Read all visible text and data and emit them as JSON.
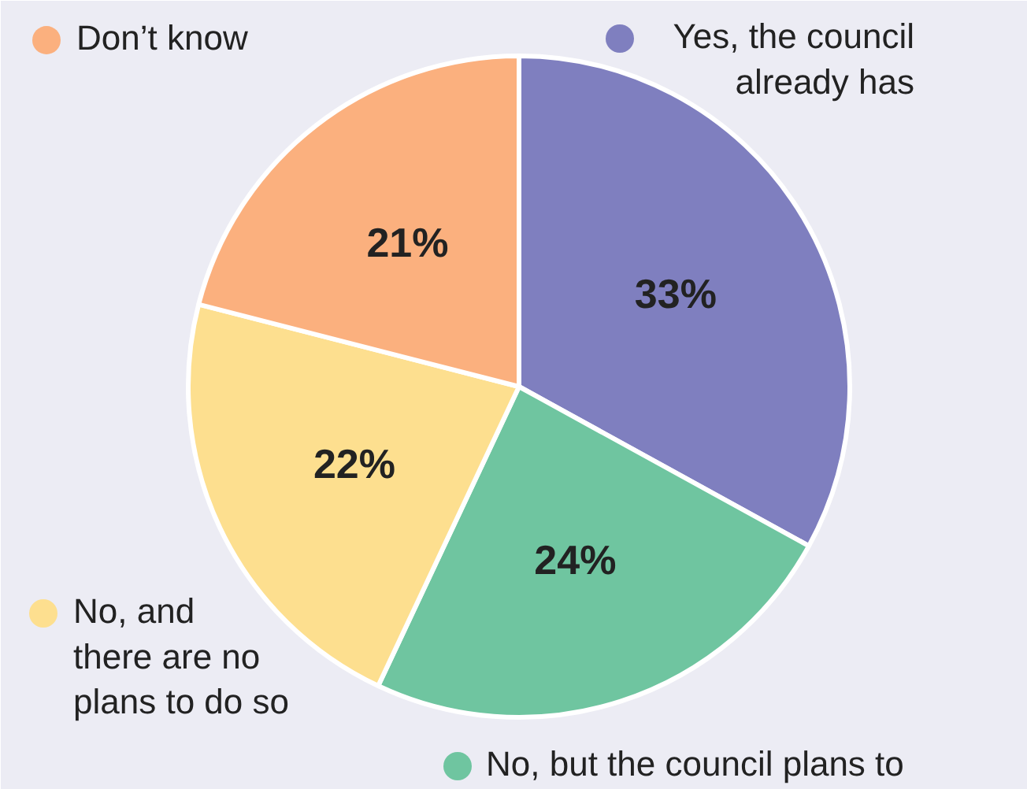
{
  "chart_data": {
    "type": "pie",
    "categories": [
      "Yes, the council\nalready has",
      "No, but the council plans to",
      "No, and\nthere are no\nplans to do so",
      "Don’t know"
    ],
    "values": [
      33,
      24,
      22,
      21
    ],
    "colors": [
      "#7f7fbf",
      "#6fc5a0",
      "#fddf8f",
      "#fbb07e"
    ],
    "value_labels": [
      "33%",
      "24%",
      "22%",
      "21%"
    ],
    "legend": "bottom left"
  }
}
